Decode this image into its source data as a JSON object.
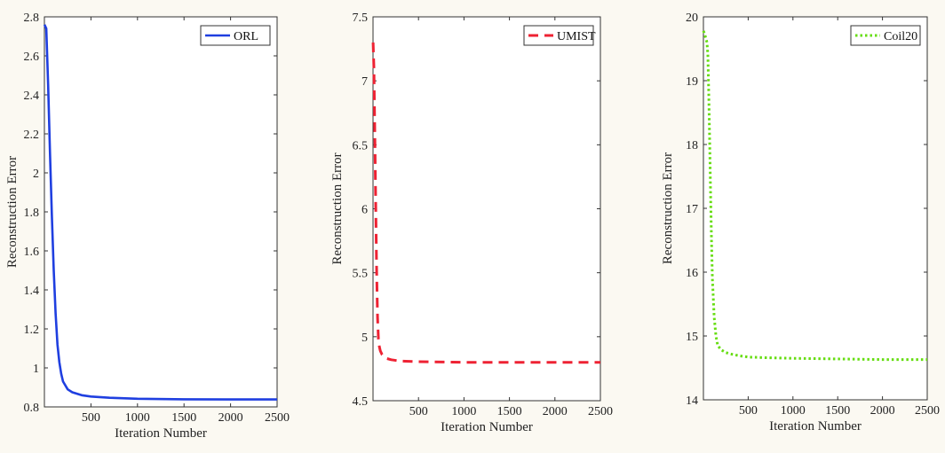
{
  "chart_data": [
    {
      "type": "line",
      "xlabel": "Iteration Number",
      "ylabel": "Reconstruction Error",
      "xlim": [
        0,
        2500
      ],
      "ylim": [
        0.8,
        2.8
      ],
      "xticks": [
        500,
        1000,
        1500,
        2000,
        2500
      ],
      "yticks": [
        0.8,
        1,
        1.2,
        1.4,
        1.6,
        1.8,
        2,
        2.2,
        2.4,
        2.6,
        2.8
      ],
      "xtick_labels": [
        "500",
        "1000",
        "1500",
        "2000",
        "2500"
      ],
      "ytick_labels": [
        "0.8",
        "1",
        "1.2",
        "1.4",
        "1.6",
        "1.8",
        "2",
        "2.2",
        "2.4",
        "2.6",
        "2.8"
      ],
      "grid": false,
      "legend_position": "top-right",
      "series": [
        {
          "name": "ORL",
          "color": "#1f3fe0",
          "style": "solid",
          "x": [
            1,
            20,
            40,
            60,
            80,
            100,
            120,
            140,
            160,
            180,
            200,
            250,
            300,
            400,
            500,
            700,
            1000,
            1500,
            2000,
            2500
          ],
          "y": [
            2.76,
            2.74,
            2.45,
            2.1,
            1.78,
            1.5,
            1.28,
            1.12,
            1.03,
            0.97,
            0.93,
            0.89,
            0.875,
            0.86,
            0.853,
            0.847,
            0.842,
            0.839,
            0.838,
            0.838
          ]
        }
      ]
    },
    {
      "type": "line",
      "xlabel": "Iteration Number",
      "ylabel": "Reconstruction Error",
      "xlim": [
        0,
        2500
      ],
      "ylim": [
        4.5,
        7.5
      ],
      "xticks": [
        500,
        1000,
        1500,
        2000,
        2500
      ],
      "yticks": [
        4.5,
        5,
        5.5,
        6,
        6.5,
        7,
        7.5
      ],
      "xtick_labels": [
        "500",
        "1000",
        "1500",
        "2000",
        "2500"
      ],
      "ytick_labels": [
        "4.5",
        "5",
        "5.5",
        "6",
        "6.5",
        "7",
        "7.5"
      ],
      "grid": false,
      "legend_position": "top-right",
      "series": [
        {
          "name": "UMIST",
          "color": "#ee2233",
          "style": "dashed",
          "x": [
            1,
            10,
            20,
            30,
            40,
            50,
            60,
            70,
            80,
            100,
            150,
            200,
            300,
            500,
            1000,
            1500,
            2000,
            2500
          ],
          "y": [
            7.3,
            7.1,
            6.6,
            6.0,
            5.5,
            5.15,
            4.98,
            4.92,
            4.89,
            4.86,
            4.83,
            4.82,
            4.81,
            4.805,
            4.8,
            4.8,
            4.8,
            4.8
          ]
        }
      ]
    },
    {
      "type": "line",
      "xlabel": "Iteration Number",
      "ylabel": "Reconstruction Error",
      "xlim": [
        0,
        2500
      ],
      "ylim": [
        14,
        20
      ],
      "xticks": [
        500,
        1000,
        1500,
        2000,
        2500
      ],
      "yticks": [
        14,
        15,
        16,
        17,
        18,
        19,
        20
      ],
      "xtick_labels": [
        "500",
        "1000",
        "1500",
        "2000",
        "2500"
      ],
      "ytick_labels": [
        "14",
        "15",
        "16",
        "17",
        "18",
        "19",
        "20"
      ],
      "grid": false,
      "legend_position": "top-right",
      "series": [
        {
          "name": "Coil20",
          "color": "#66dd11",
          "style": "dotted",
          "x": [
            1,
            20,
            40,
            50,
            60,
            70,
            80,
            90,
            100,
            120,
            140,
            160,
            200,
            250,
            300,
            400,
            500,
            700,
            1000,
            1500,
            2000,
            2500
          ],
          "y": [
            19.78,
            19.7,
            19.6,
            19.4,
            18.8,
            18.0,
            17.2,
            16.5,
            15.9,
            15.3,
            15.0,
            14.85,
            14.78,
            14.74,
            14.72,
            14.69,
            14.67,
            14.66,
            14.65,
            14.64,
            14.63,
            14.63
          ]
        }
      ]
    }
  ]
}
